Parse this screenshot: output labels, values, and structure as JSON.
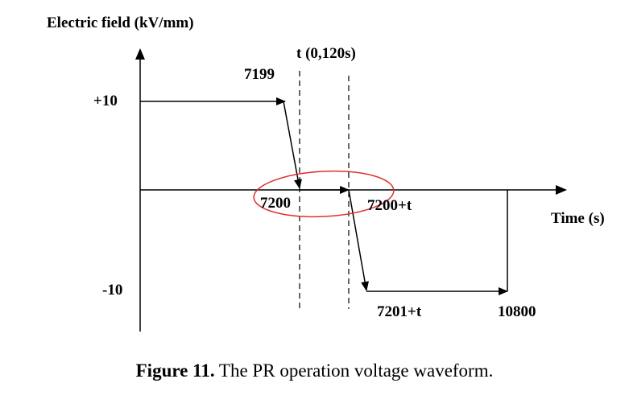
{
  "diagram": {
    "y_axis_label": "Electric field (kV/mm)",
    "x_axis_label": "Time (s)",
    "interval_label": "t (0,120s)",
    "level_pos_label": "+10",
    "level_neg_label": "-10",
    "time_labels": {
      "t7199": "7199",
      "t7200": "7200",
      "t7200t": "7200+t",
      "t7201t": "7201+t",
      "t10800": "10800"
    },
    "colors": {
      "line": "#000000",
      "highlight": "#e03030"
    }
  },
  "caption": {
    "prefix": "Figure 11.",
    "text": " The PR operation voltage waveform."
  }
}
